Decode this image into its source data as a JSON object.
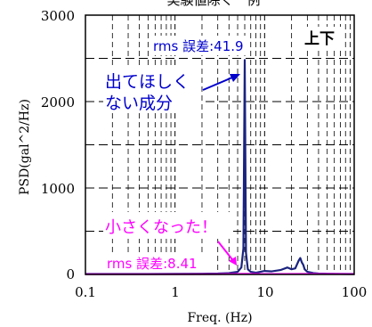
{
  "chart_data": {
    "type": "line",
    "title": "実験値除く一例",
    "xlabel": "Freq. (Hz)",
    "ylabel": "PSD(gal^2/Hz)",
    "xscale": "log",
    "xlim": [
      0.1,
      100
    ],
    "ylim": [
      0,
      3000
    ],
    "x_ticks": [
      "0.1",
      "1",
      "10",
      "100"
    ],
    "y_ticks": [
      "0",
      "1000",
      "2000",
      "3000"
    ],
    "grid": true,
    "corner_label": "上下",
    "series": [
      {
        "color": "#1a237e",
        "x": [
          0.1,
          0.5,
          1,
          2,
          3,
          4,
          5,
          5.5,
          5.8,
          6.0,
          6.2,
          6.5,
          7,
          8,
          10,
          12,
          15,
          18,
          20,
          22,
          24,
          25,
          26,
          27,
          28,
          30,
          35,
          40,
          50,
          70,
          100
        ],
        "y": [
          5,
          5,
          6,
          8,
          10,
          15,
          30,
          80,
          300,
          2480,
          250,
          60,
          30,
          20,
          40,
          35,
          50,
          80,
          60,
          70,
          160,
          190,
          140,
          110,
          60,
          30,
          15,
          10,
          8,
          6,
          5
        ]
      },
      {
        "color": "#ff00ff",
        "x": [
          0.1,
          1,
          3,
          5,
          6,
          10,
          30,
          100
        ],
        "y": [
          3,
          3,
          4,
          6,
          8,
          5,
          6,
          4
        ]
      }
    ],
    "annotations": [
      {
        "text": "rms 誤差:41.9",
        "color": "#0000cc"
      },
      {
        "text_lines": [
          "出てほしく",
          "ない成分"
        ],
        "color": "#0000cc"
      },
      {
        "text": "小さくなった！",
        "color": "#ff00ff"
      },
      {
        "text": "rms 誤差:8.41",
        "color": "#ff00ff"
      }
    ]
  }
}
